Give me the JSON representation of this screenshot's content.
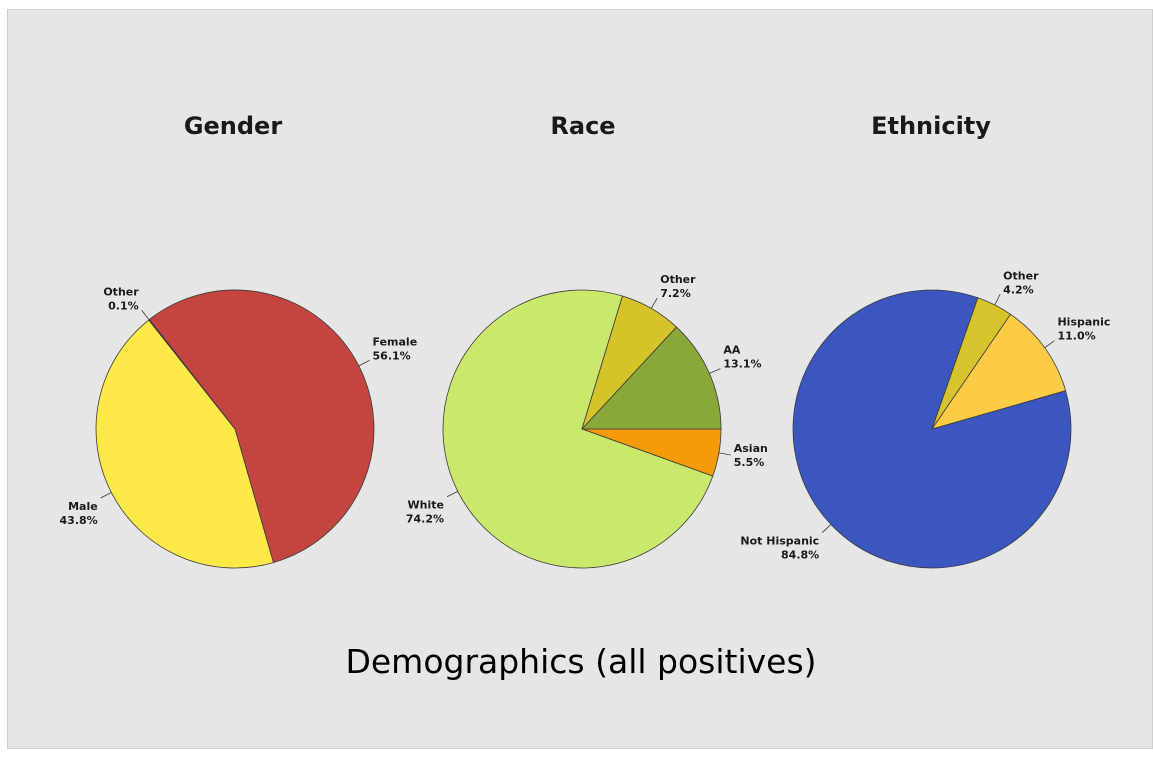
{
  "title": "Demographics (all positives)",
  "chart_data": [
    {
      "type": "pie",
      "title": "Gender",
      "slices": [
        {
          "label": "Female",
          "value": 56.1,
          "display": "56.1%",
          "color": "#c44540"
        },
        {
          "label": "Male",
          "value": 43.8,
          "display": "43.8%",
          "color": "#fce948"
        },
        {
          "label": "Other",
          "value": 0.1,
          "display": "0.1%",
          "color": "#d1c121"
        }
      ]
    },
    {
      "type": "pie",
      "title": "Race",
      "slices": [
        {
          "label": "Asian",
          "value": 5.5,
          "display": "5.5%",
          "color": "#f59a09"
        },
        {
          "label": "White",
          "value": 74.2,
          "display": "74.2%",
          "color": "#c9e86c"
        },
        {
          "label": "Other",
          "value": 7.2,
          "display": "7.2%",
          "color": "#d5c32a"
        },
        {
          "label": "AA",
          "value": 13.1,
          "display": "13.1%",
          "color": "#8aa83a"
        }
      ]
    },
    {
      "type": "pie",
      "title": "Ethnicity",
      "slices": [
        {
          "label": "Not Hispanic",
          "value": 84.8,
          "display": "84.8%",
          "color": "#3c56c0"
        },
        {
          "label": "Other",
          "value": 4.2,
          "display": "4.2%",
          "color": "#d7c42c"
        },
        {
          "label": "Hispanic",
          "value": 11.0,
          "display": "11.0%",
          "color": "#fccb45"
        }
      ]
    }
  ]
}
